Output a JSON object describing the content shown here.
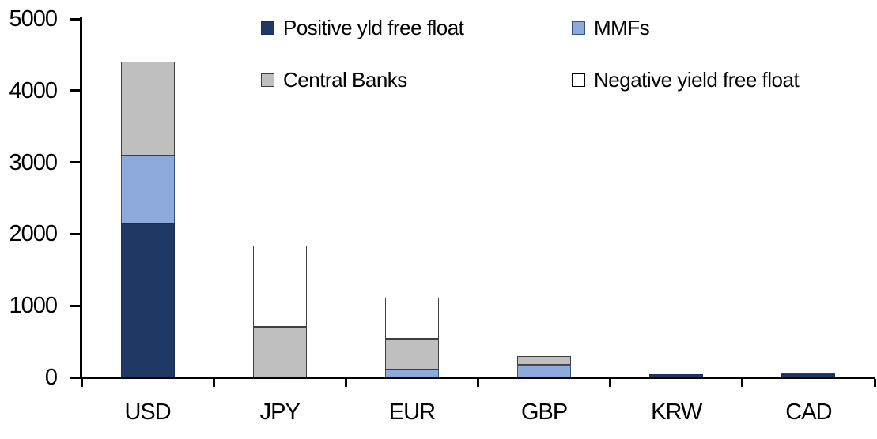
{
  "chart_data": {
    "type": "bar",
    "stacked": true,
    "title": "",
    "xlabel": "",
    "ylabel": "",
    "categories": [
      "USD",
      "JPY",
      "EUR",
      "GBP",
      "KRW",
      "CAD"
    ],
    "series": [
      {
        "name": "Positive yld free float",
        "color": "#1F3864",
        "border_color": "#1A2E53",
        "values": [
          2150,
          0,
          0,
          0,
          45,
          40
        ]
      },
      {
        "name": "MMFs",
        "color": "#8EA9DB",
        "border_color": "#33527F",
        "values": [
          950,
          0,
          110,
          180,
          0,
          0
        ]
      },
      {
        "name": "Central Banks",
        "color": "#BFBFBF",
        "border_color": "#404040",
        "values": [
          1300,
          700,
          430,
          120,
          0,
          30
        ]
      },
      {
        "name": "Negative yield free float",
        "color": "#FFFFFF",
        "border_color": "#404040",
        "values": [
          0,
          1140,
          570,
          0,
          0,
          0
        ]
      }
    ],
    "totals": [
      4400,
      1840,
      1110,
      300,
      45,
      70
    ],
    "ylim": [
      0,
      5000
    ],
    "ytick_labels": [
      "0",
      "1000",
      "2000",
      "3000",
      "4000",
      "5000"
    ],
    "grid": false,
    "legend_position": "top",
    "legend_layout": "2x2"
  },
  "colors": {
    "background": "#FFFFFF",
    "axis": "#000000",
    "text": "#000000"
  }
}
